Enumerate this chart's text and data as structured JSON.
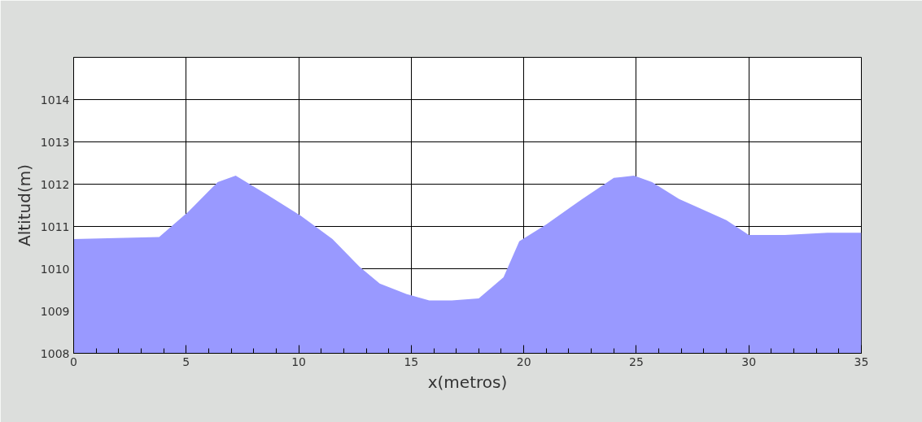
{
  "chart_data": {
    "type": "area",
    "xlabel": "x(metros)",
    "ylabel": "Altitud(m)",
    "x": [
      0,
      3.8,
      5.1,
      6.4,
      7.2,
      8.6,
      10.1,
      11.5,
      12.7,
      13.6,
      14.8,
      15.8,
      16.8,
      18.0,
      19.1,
      19.8,
      21.0,
      22.6,
      24.0,
      24.9,
      25.7,
      26.9,
      29.0,
      30.0,
      31.6,
      33.5,
      35
    ],
    "series": [
      {
        "color": "#9999ff",
        "values": [
          1010.7,
          1010.75,
          1011.35,
          1012.05,
          1012.2,
          1011.75,
          1011.25,
          1010.7,
          1010.05,
          1009.65,
          1009.4,
          1009.25,
          1009.25,
          1009.3,
          1009.8,
          1010.65,
          1011.05,
          1011.65,
          1012.15,
          1012.2,
          1012.05,
          1011.65,
          1011.15,
          1010.8,
          1010.8,
          1010.85,
          1010.85
        ]
      }
    ],
    "xlim": [
      0,
      35
    ],
    "xticks": [
      0,
      5,
      10,
      15,
      20,
      25,
      30,
      35
    ],
    "ylim": [
      1008,
      1015
    ],
    "yticks": [
      1008,
      1009,
      1010,
      1011,
      1012,
      1013,
      1014,
      {
        "value": 1015,
        "label": null
      }
    ],
    "grid": true
  }
}
